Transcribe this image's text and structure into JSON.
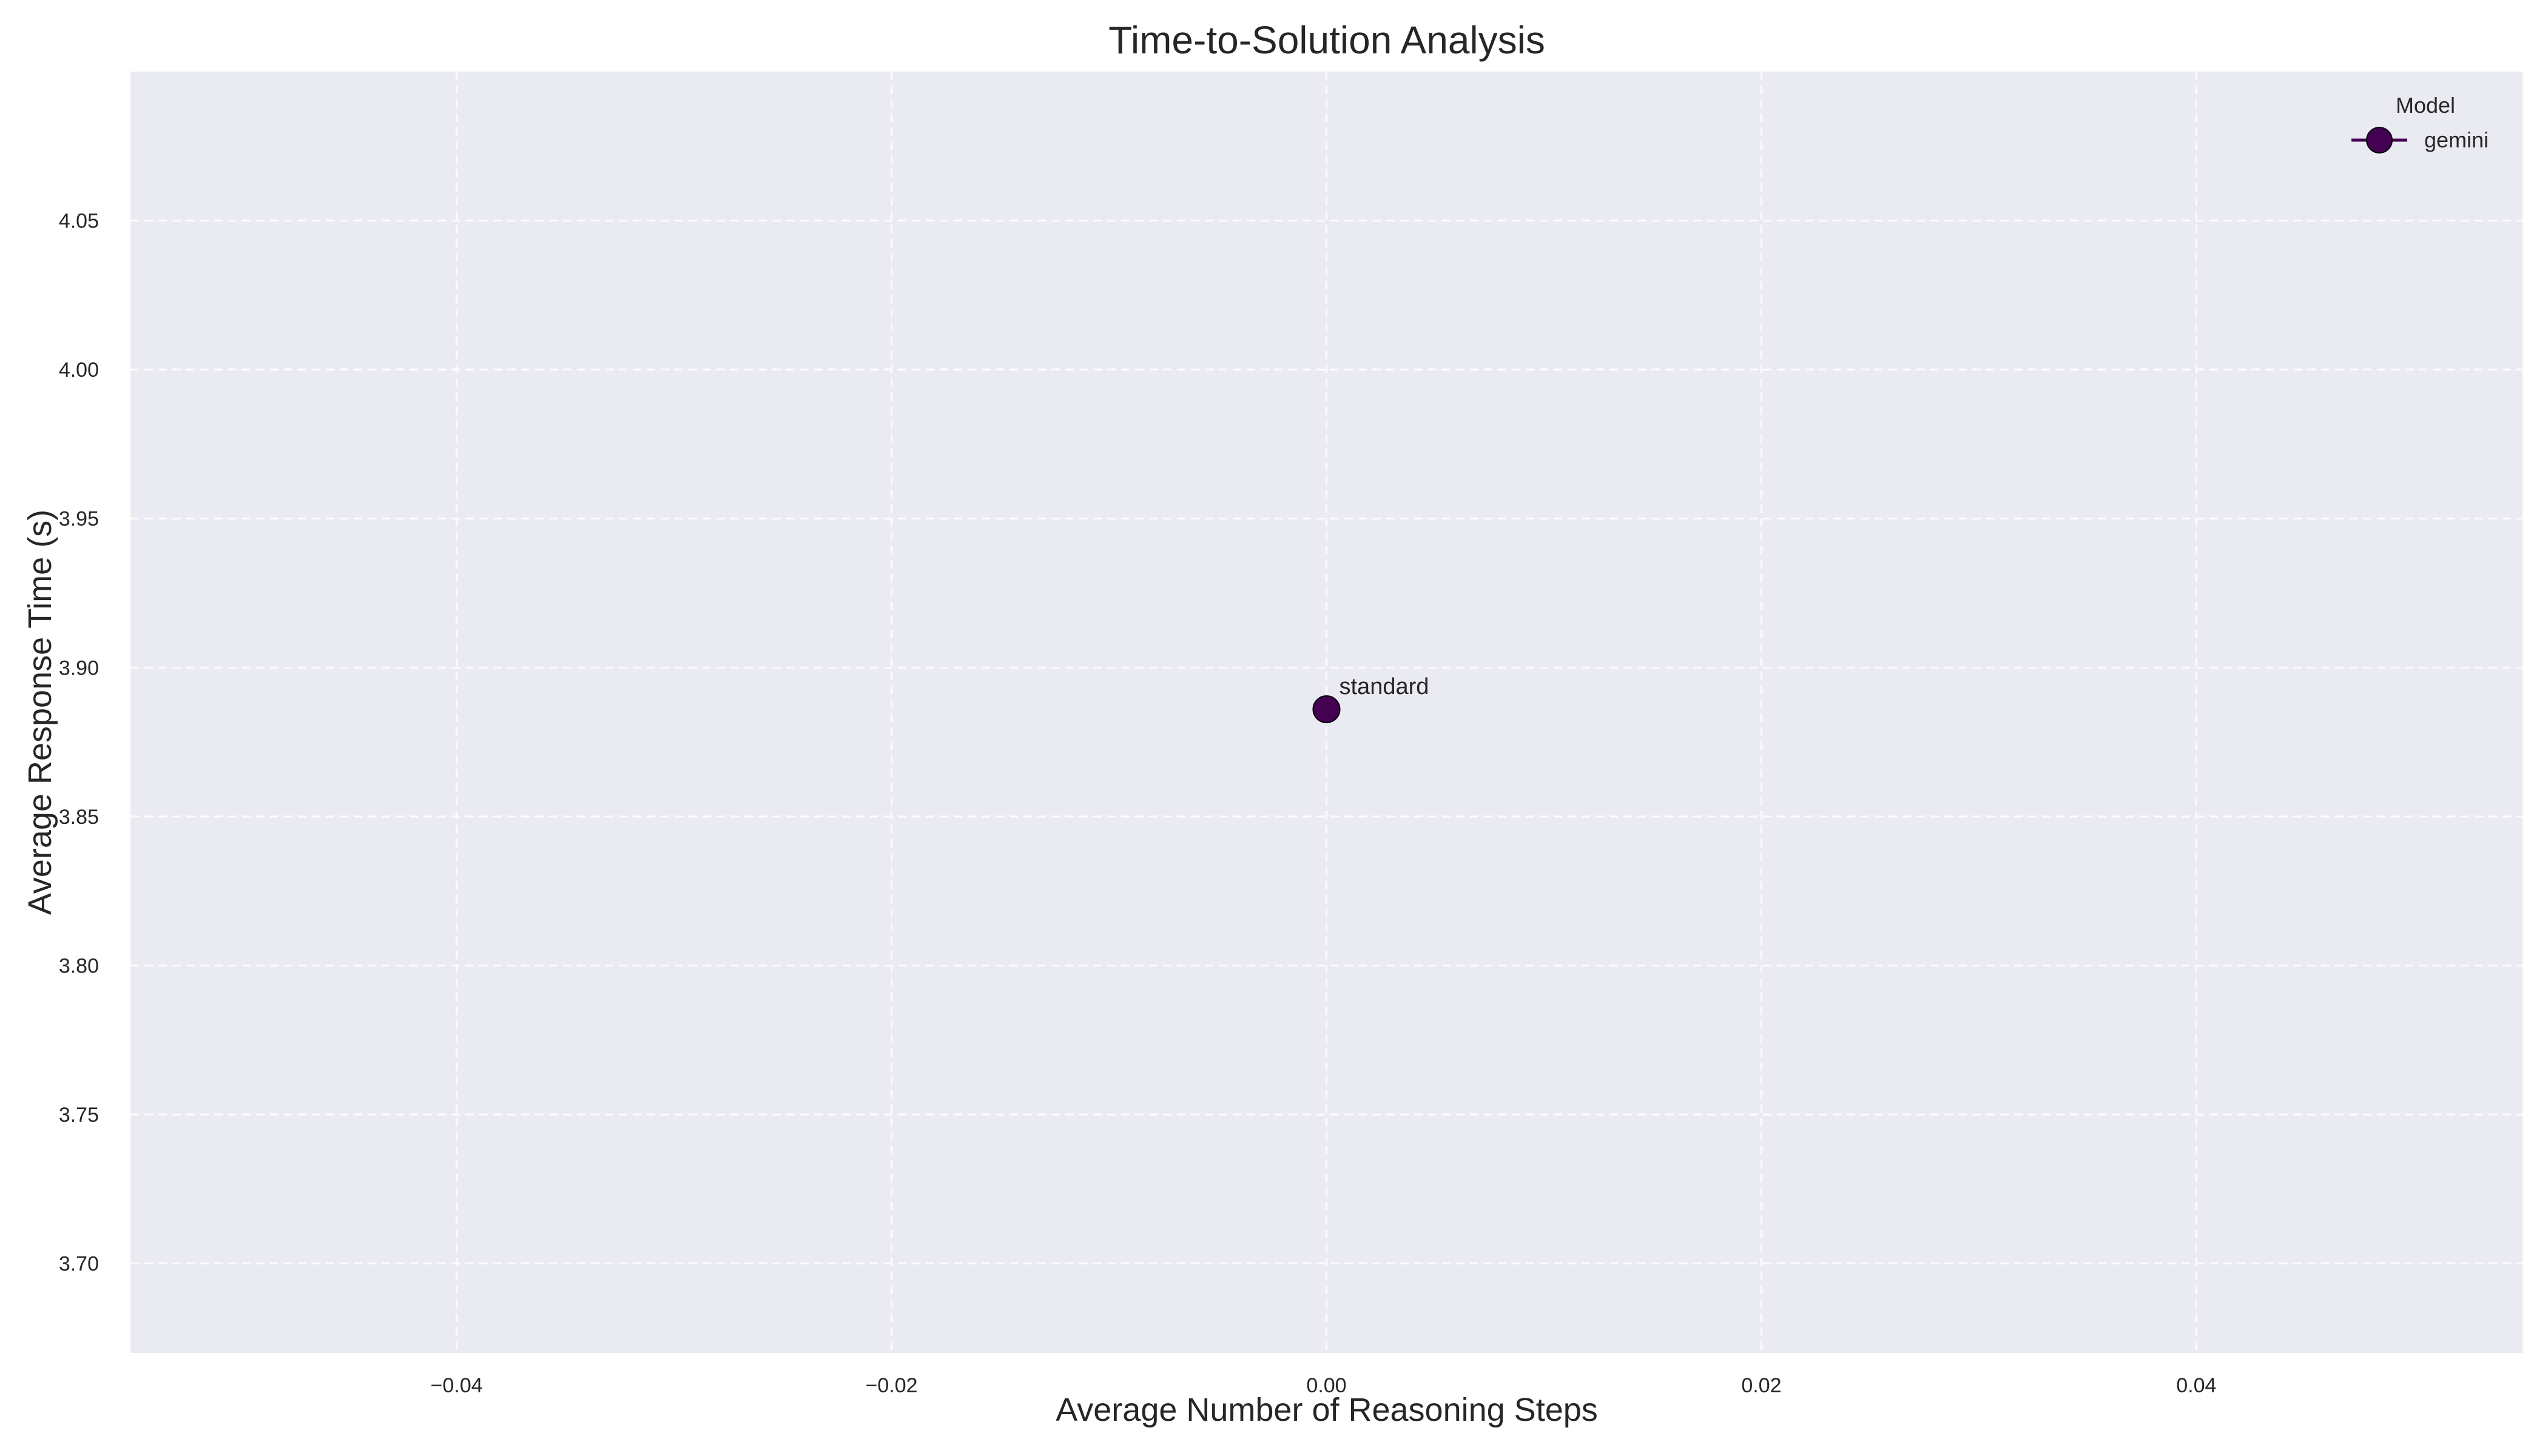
{
  "chart_data": {
    "type": "scatter",
    "title": "Time-to-Solution Analysis",
    "xlabel": "Average Number of Reasoning Steps",
    "ylabel": "Average Response Time (s)",
    "xlim": [
      -0.055,
      0.055
    ],
    "ylim": [
      3.67,
      4.1
    ],
    "xticks": [
      -0.04,
      -0.02,
      0.0,
      0.02,
      0.04
    ],
    "xtick_labels": [
      "−0.04",
      "−0.02",
      "0.00",
      "0.02",
      "0.04"
    ],
    "yticks": [
      3.7,
      3.75,
      3.8,
      3.85,
      3.9,
      3.95,
      4.0,
      4.05
    ],
    "ytick_labels": [
      "3.70",
      "3.75",
      "3.80",
      "3.85",
      "3.90",
      "3.95",
      "4.00",
      "4.05"
    ],
    "grid": true,
    "legend": {
      "title": "Model",
      "placement": "top-right"
    },
    "series": [
      {
        "name": "gemini",
        "color": "#440154",
        "points": [
          {
            "x": 0.0,
            "y": 3.886,
            "label": "standard"
          }
        ]
      }
    ]
  }
}
